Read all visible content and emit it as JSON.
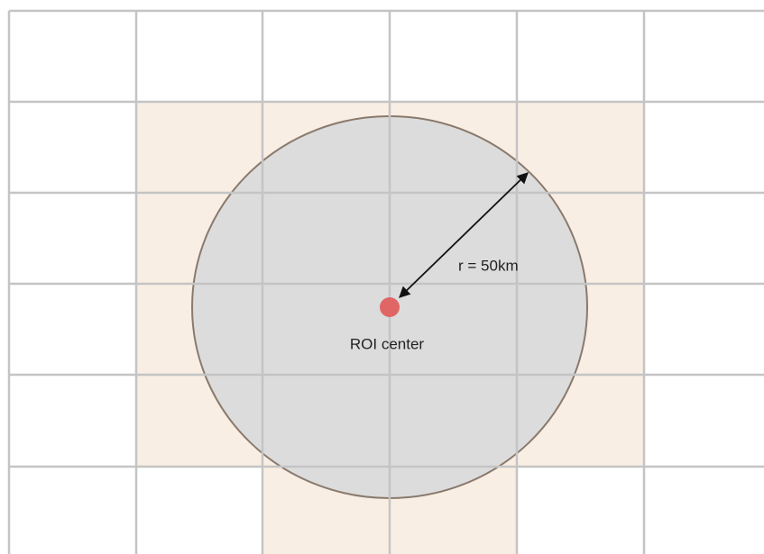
{
  "labels": {
    "radius": "r = 50km",
    "center": "ROI center"
  }
}
